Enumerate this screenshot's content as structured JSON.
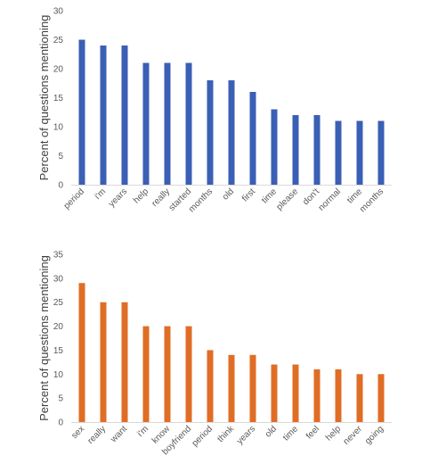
{
  "chart_data": [
    {
      "type": "bar",
      "title": "",
      "xlabel": "",
      "ylabel": "Percent of questions mentioning",
      "ylim": [
        0,
        30
      ],
      "yticks": [
        0,
        5,
        10,
        15,
        20,
        25,
        30
      ],
      "grid": false,
      "color": "#3a5fb5",
      "categories": [
        "period",
        "i'm",
        "years",
        "help",
        "really",
        "started",
        "months",
        "old",
        "first",
        "time",
        "please",
        "don't",
        "normal",
        "time",
        "months"
      ],
      "values": [
        25,
        24,
        24,
        21,
        21,
        21,
        18,
        18,
        16,
        13,
        12,
        12,
        11,
        11,
        11
      ]
    },
    {
      "type": "bar",
      "title": "",
      "xlabel": "",
      "ylabel": "Percent of questions mentioning",
      "ylim": [
        0,
        35
      ],
      "yticks": [
        0,
        5,
        10,
        15,
        20,
        25,
        30,
        35
      ],
      "grid": false,
      "color": "#e06d26",
      "categories": [
        "sex",
        "really",
        "want",
        "i'm",
        "know",
        "boyfriend",
        "period",
        "think",
        "years",
        "old",
        "time",
        "feel",
        "help",
        "never",
        "going"
      ],
      "values": [
        29,
        25,
        25,
        20,
        20,
        20,
        15,
        14,
        14,
        12,
        12,
        11,
        11,
        10,
        10
      ]
    }
  ]
}
